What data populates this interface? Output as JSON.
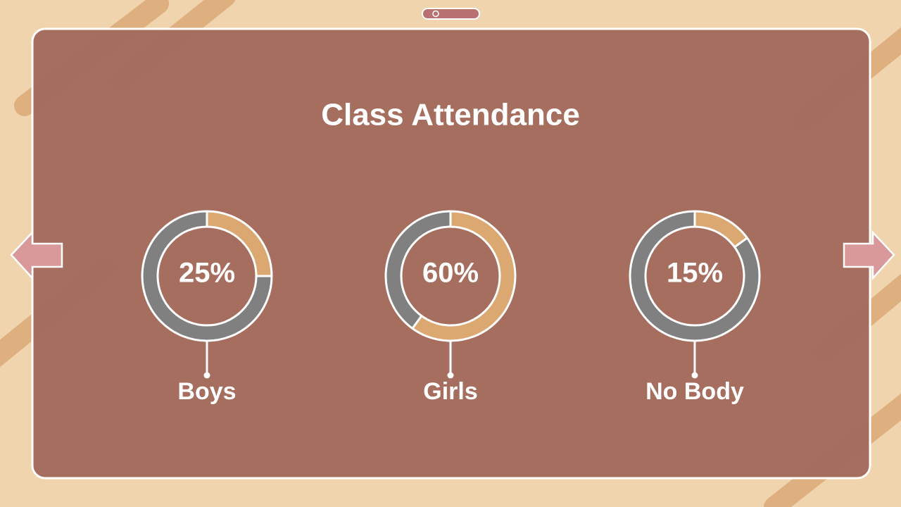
{
  "title": "Class Attendance",
  "chart_data": [
    {
      "type": "donut",
      "label": "Boys",
      "values": [
        25
      ],
      "value_labels": [
        "25%"
      ],
      "color": "#dba872",
      "track_color": "#808080"
    },
    {
      "type": "donut",
      "label": "Girls",
      "values": [
        60
      ],
      "value_labels": [
        "60%"
      ],
      "color": "#dba872",
      "track_color": "#808080"
    },
    {
      "type": "donut",
      "label": "No Body",
      "values": [
        15
      ],
      "value_labels": [
        "15%"
      ],
      "color": "#dba872",
      "track_color": "#808080"
    }
  ]
}
